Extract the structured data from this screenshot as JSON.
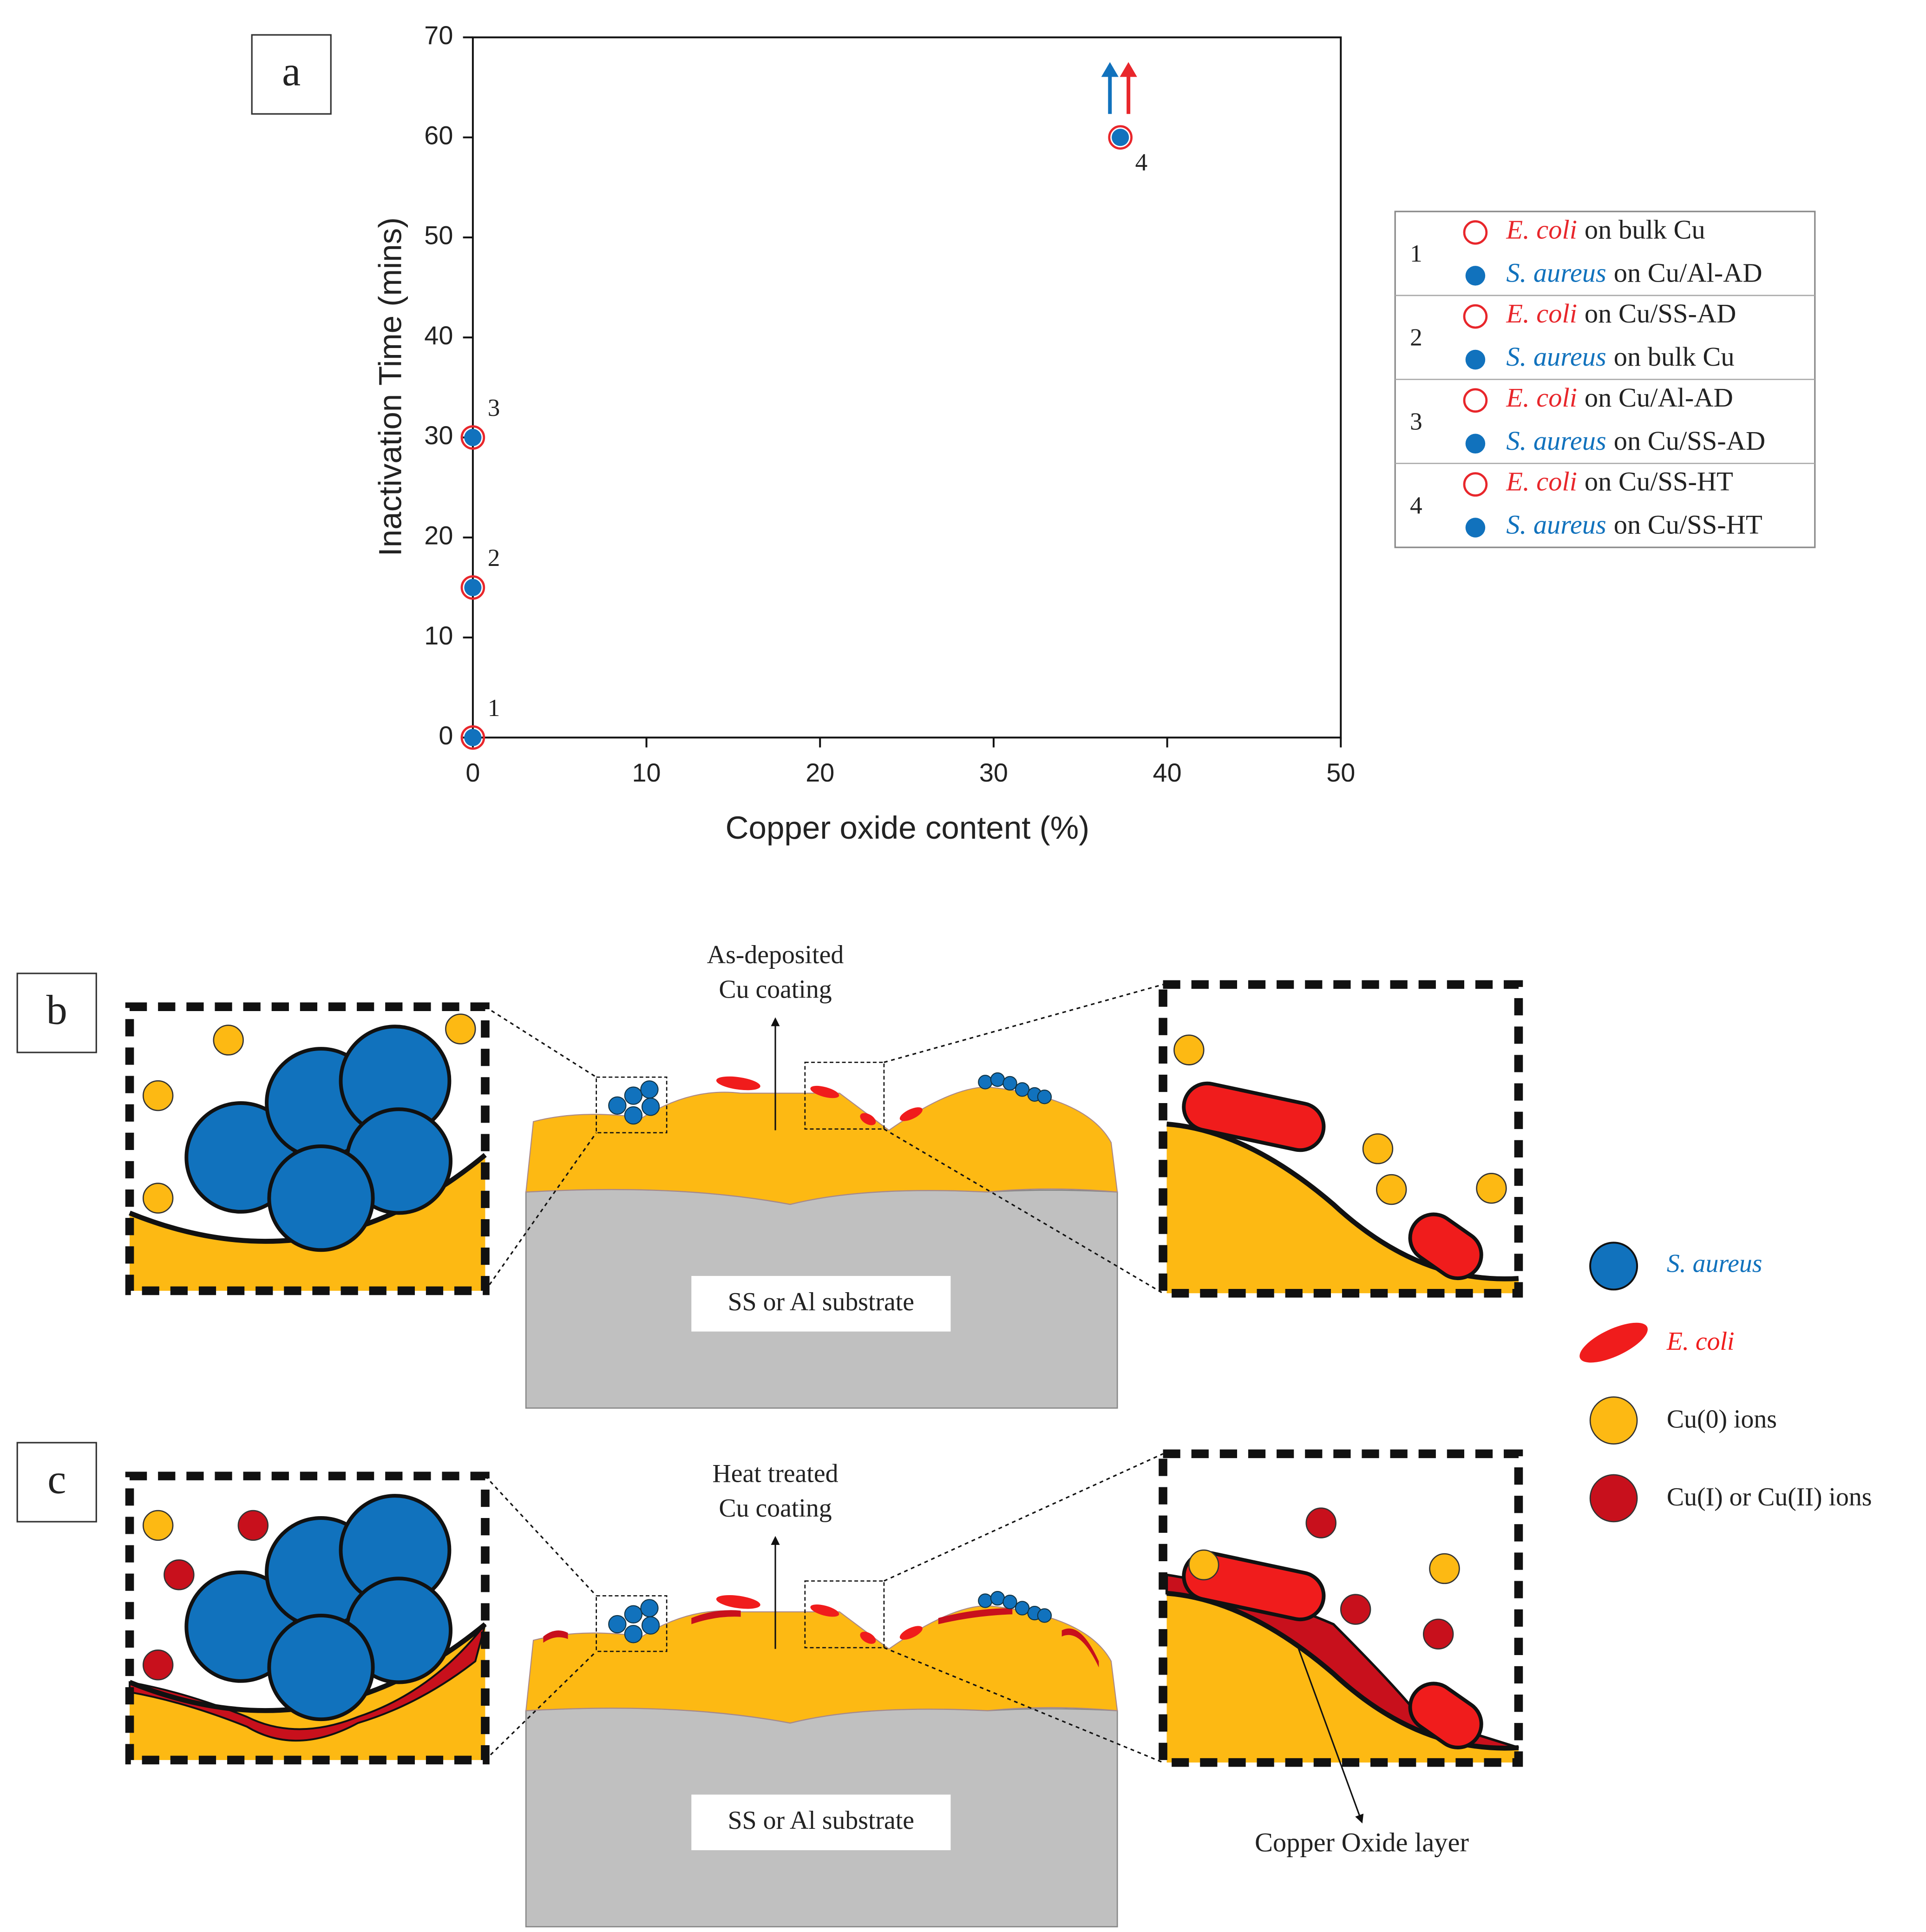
{
  "chart_data": {
    "type": "scatter",
    "panel_label": "a",
    "xlabel": "Copper oxide content (%)",
    "ylabel": "Inactivation Time (mins)",
    "xlim": [
      0,
      50
    ],
    "ylim": [
      0,
      70
    ],
    "xticks": [
      0,
      10,
      20,
      30,
      40,
      50
    ],
    "yticks": [
      0,
      10,
      20,
      30,
      40,
      50,
      60,
      70
    ],
    "series": [
      {
        "name": "E. coli",
        "color": "#e8262b",
        "x": [
          0,
          0,
          0,
          37.3
        ],
        "values": [
          0,
          15,
          30,
          60
        ]
      },
      {
        "name": "S. aureus",
        "color": "#1172bd",
        "x": [
          0,
          0,
          0,
          37.3
        ],
        "values": [
          0,
          15,
          30,
          60
        ]
      }
    ],
    "point_labels": [
      "1",
      "2",
      "3",
      "4"
    ],
    "legend": [
      {
        "label": "1",
        "e_coli": "on bulk Cu",
        "s_aureus": "on Cu/Al-AD"
      },
      {
        "label": "2",
        "e_coli": "on Cu/SS-AD",
        "s_aureus": "on bulk Cu"
      },
      {
        "label": "3",
        "e_coli": "on Cu/Al-AD",
        "s_aureus": "on Cu/SS-AD"
      },
      {
        "label": "4",
        "e_coli": "on Cu/SS-HT",
        "s_aureus": "on Cu/SS-HT"
      }
    ]
  },
  "diagram": {
    "panels": [
      {
        "label": "b",
        "coating": [
          "As-deposited",
          "Cu coating"
        ],
        "substrate": "SS or Al substrate"
      },
      {
        "label": "c",
        "coating": [
          "Heat treated",
          "Cu coating"
        ],
        "substrate": "SS or Al substrate",
        "oxide_label": "Copper Oxide layer"
      }
    ],
    "legend": [
      "S. aureus",
      "E. coli",
      "Cu(0) ions",
      "Cu(I) or Cu(II) ions"
    ]
  }
}
